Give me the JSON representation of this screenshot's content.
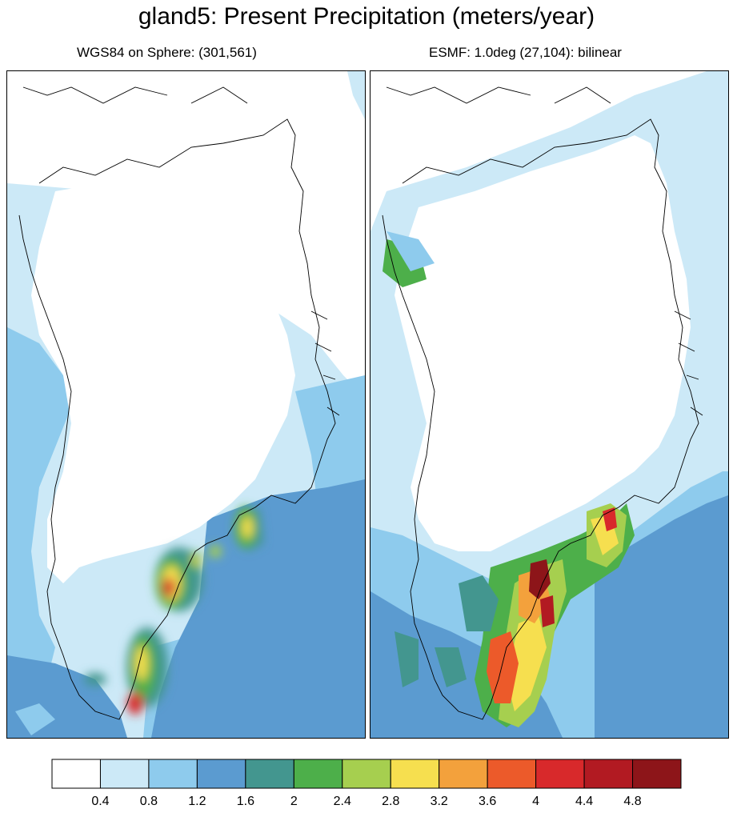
{
  "title": "gland5: Present Precipitation (meters/year)",
  "panels": {
    "left": {
      "subtitle": "WGS84 on Sphere: (301,561)"
    },
    "right": {
      "subtitle": "ESMF: 1.0deg (27,104): bilinear"
    }
  },
  "colorbar": {
    "colors": [
      "#ffffff",
      "#cce9f7",
      "#8ecbed",
      "#5b9bd0",
      "#43968f",
      "#4daf4a",
      "#a6cf4f",
      "#f6df4f",
      "#f3a13c",
      "#ec5a2a",
      "#d8292b",
      "#b21a22",
      "#8d1519"
    ],
    "tick_labels": [
      "0.4",
      "0.8",
      "1.2",
      "1.6",
      "2",
      "2.4",
      "2.8",
      "3.2",
      "3.6",
      "4",
      "4.4",
      "4.8"
    ]
  }
}
